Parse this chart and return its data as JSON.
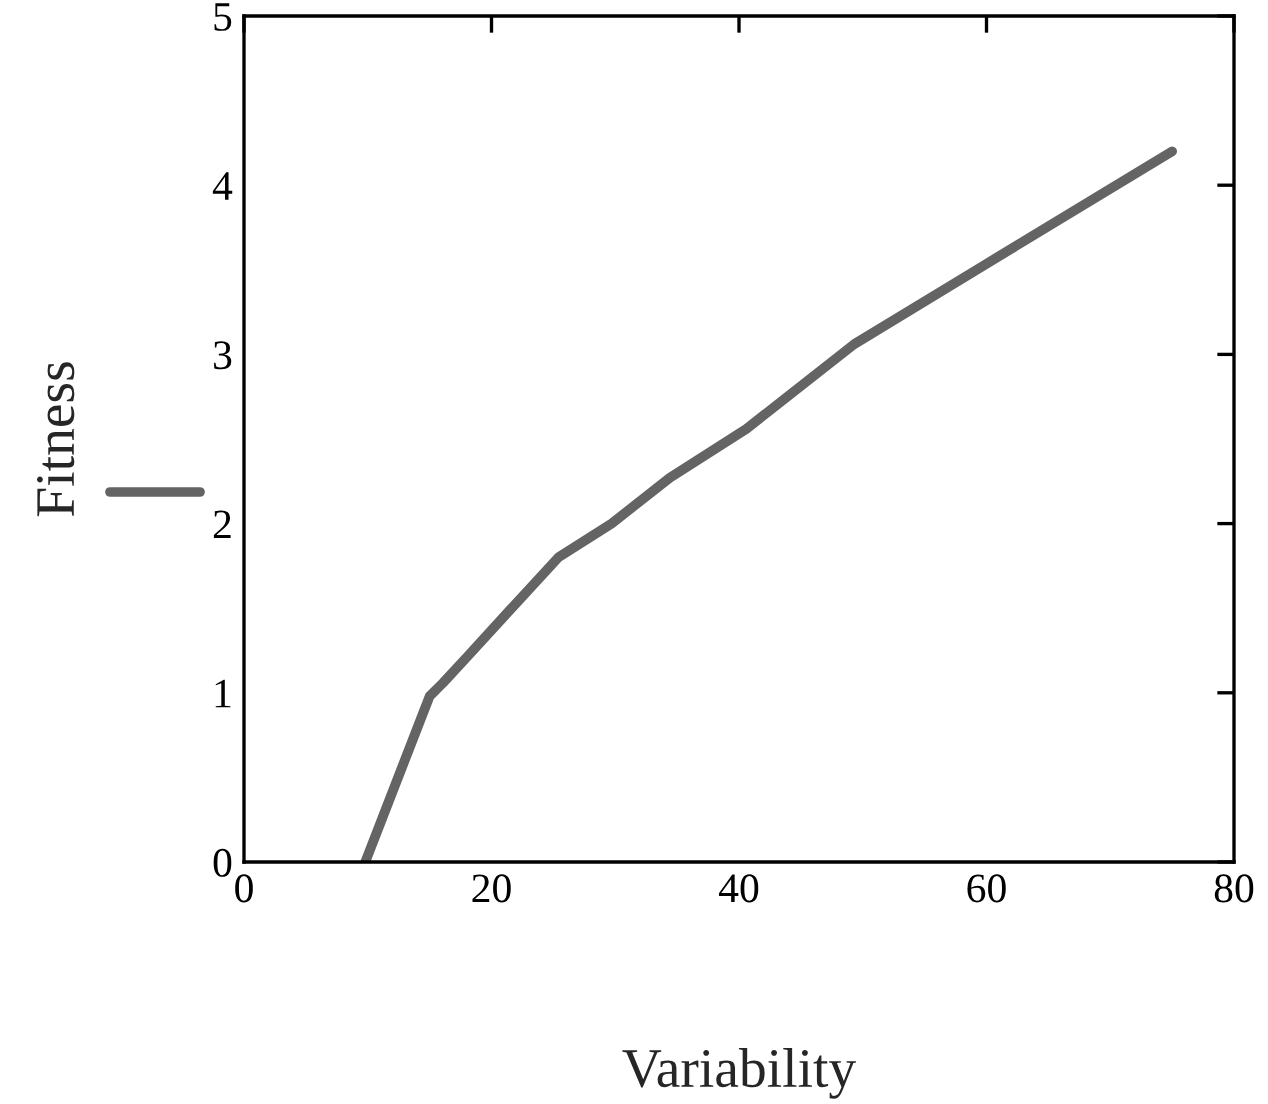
{
  "chart_data": {
    "type": "line",
    "xlabel": "Variability",
    "ylabel": "Fitness",
    "series": [
      {
        "color": "#646464",
        "x": [
          9.8,
          15.0,
          16.1,
          18.0,
          21.5,
          25.4,
          29.7,
          34.4,
          40.6,
          49.3,
          59.2,
          75.0
        ],
        "values": [
          0,
          0.98,
          1.06,
          1.21,
          1.49,
          1.8,
          2.0,
          2.27,
          2.56,
          3.06,
          3.5,
          4.2
        ]
      }
    ],
    "xlim": [
      0,
      80
    ],
    "ylim": [
      0,
      5
    ],
    "xticks": [
      0,
      20,
      40,
      60,
      80
    ],
    "yticks": [
      0,
      1,
      2,
      3,
      4,
      5
    ],
    "grid": false,
    "marker": "none",
    "line_style": "solid"
  }
}
